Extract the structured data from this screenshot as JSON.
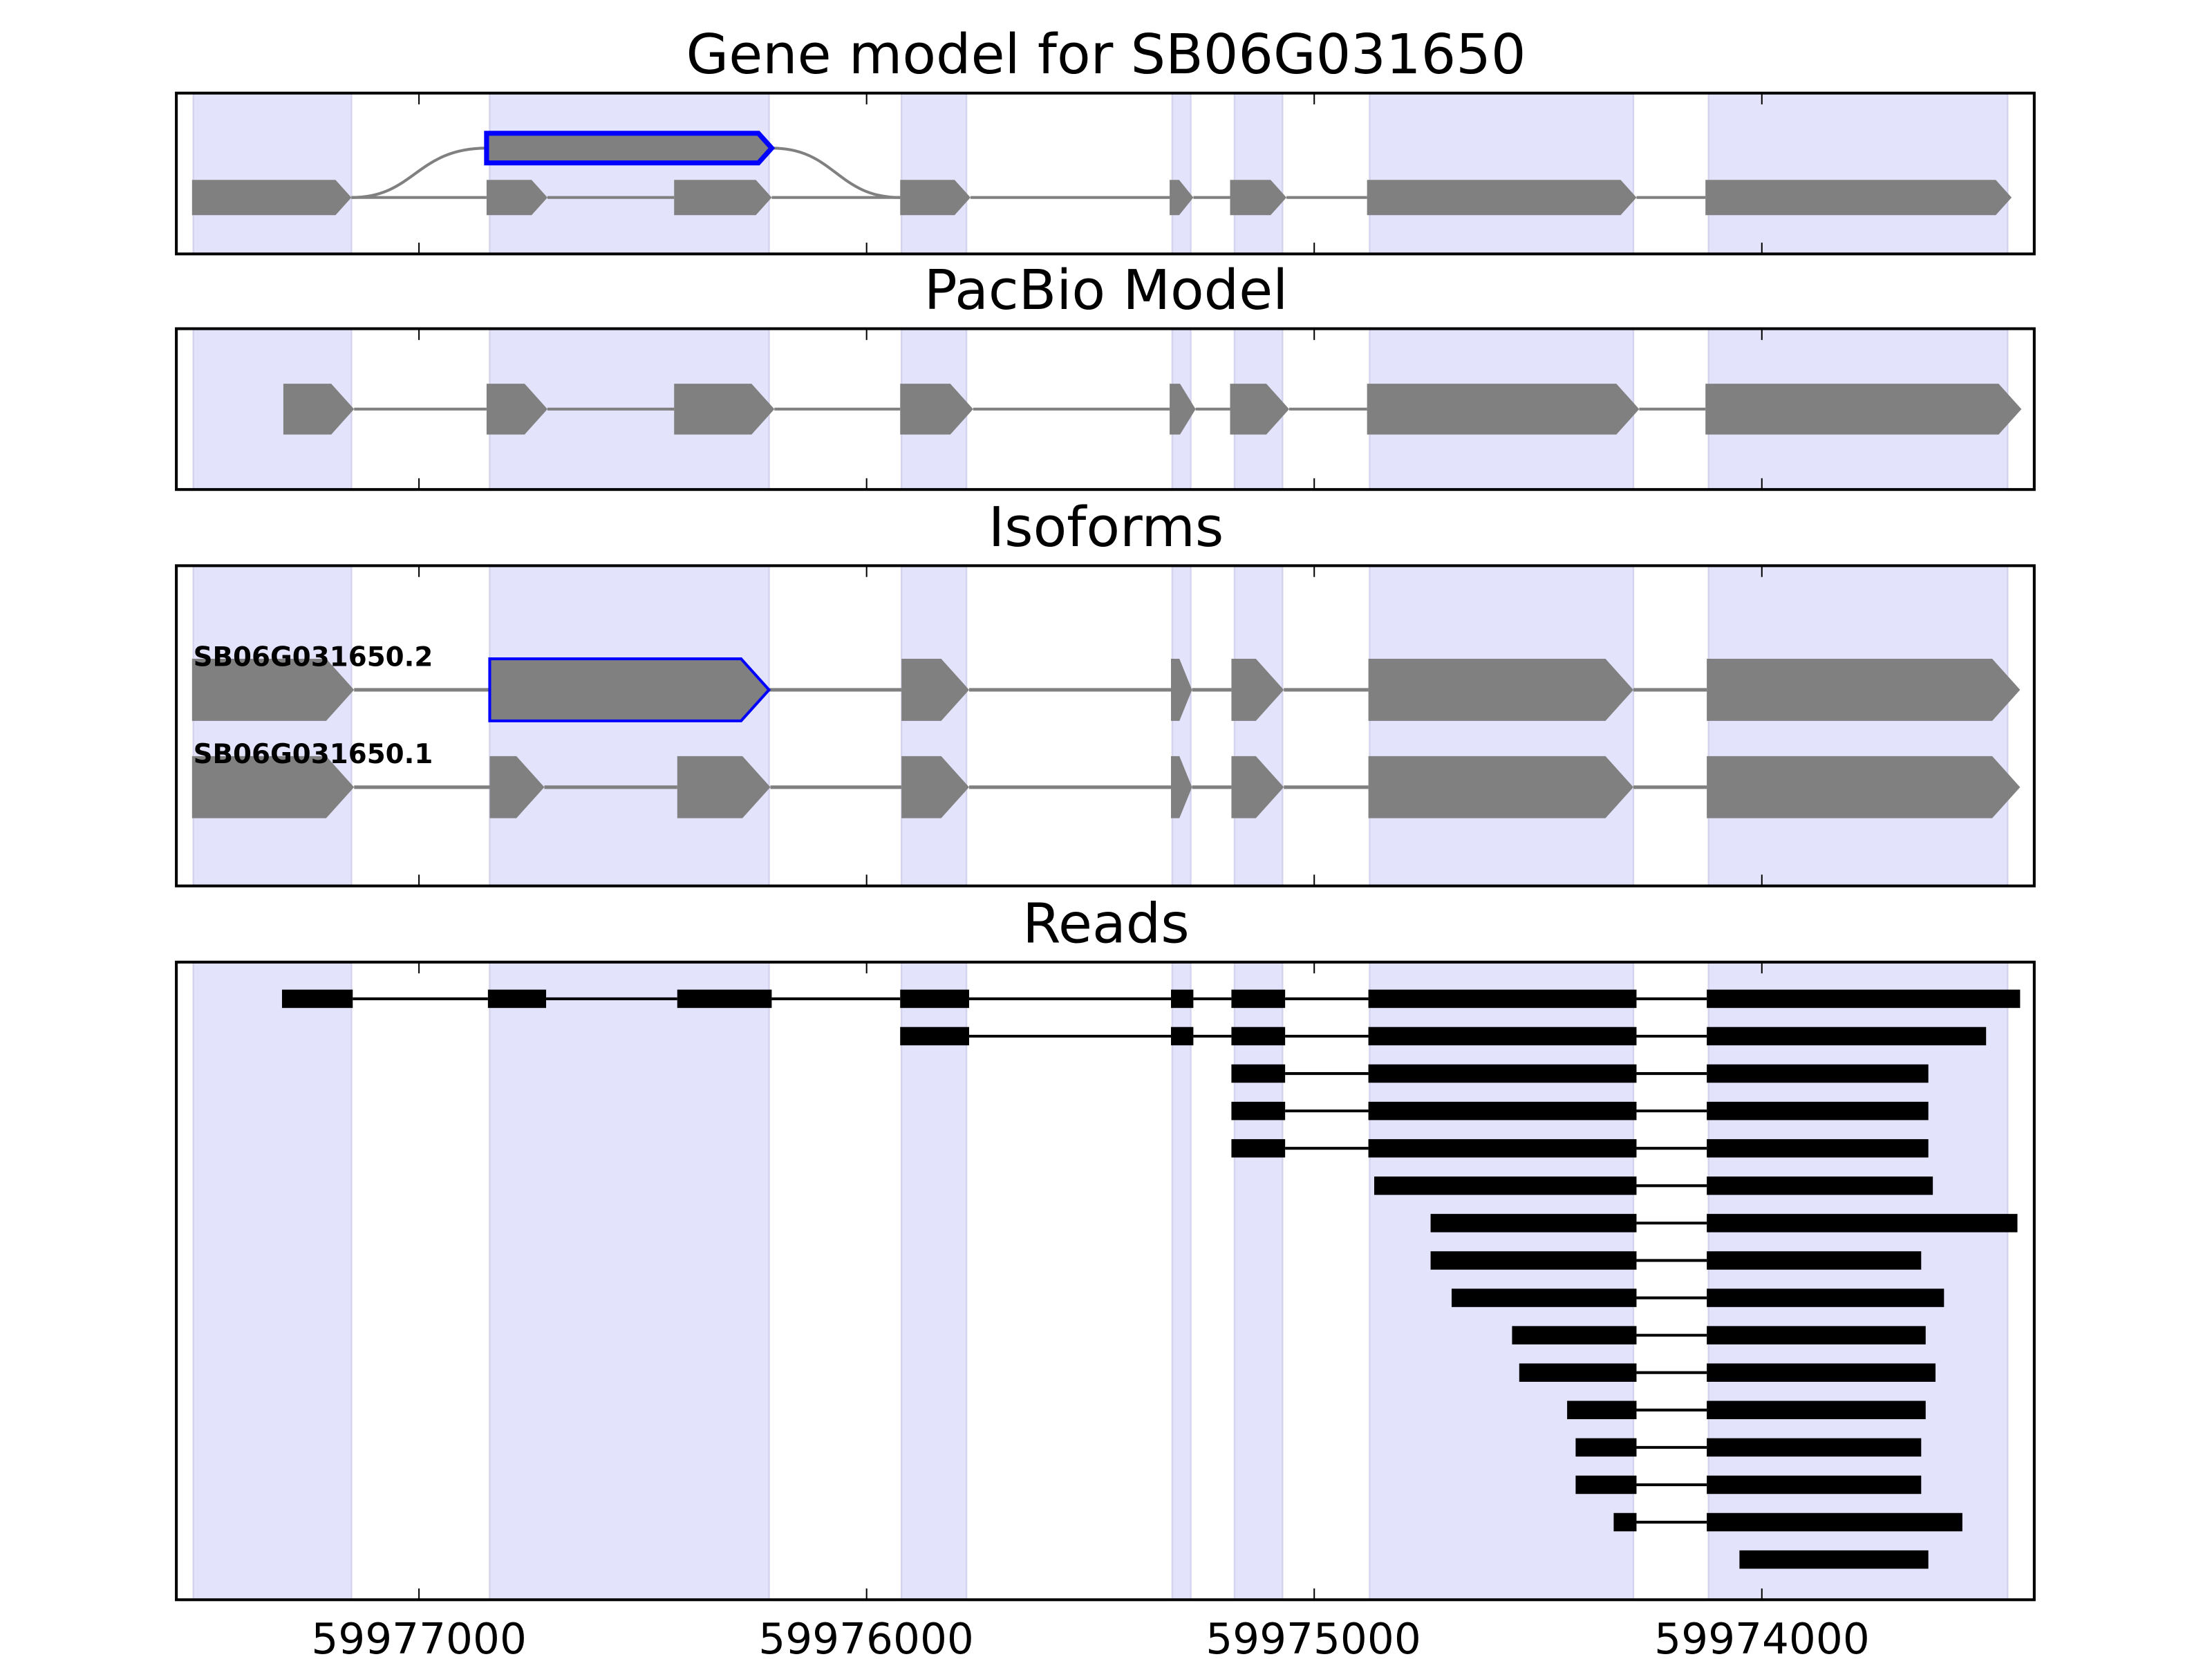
{
  "chart_data": {
    "type": "gene-track",
    "x_axis": {
      "reversed": true,
      "xlim": [
        59977540,
        59973390
      ],
      "ticks": [
        59977000,
        59976000,
        59975000,
        59974000
      ],
      "tick_labels": [
        "59977000",
        "59976000",
        "59975000",
        "59974000"
      ]
    },
    "colors": {
      "shade": "#e3e3fb",
      "exon": "#808080",
      "highlight": "#0000ff",
      "read": "#000000"
    },
    "shaded_regions": [
      [
        59977504,
        59977151
      ],
      [
        59976842,
        59976218
      ],
      [
        59975922,
        59975777
      ],
      [
        59975317,
        59975276
      ],
      [
        59975178,
        59975071
      ],
      [
        59974876,
        59974287
      ],
      [
        59974119,
        59973451
      ]
    ],
    "panels": [
      {
        "title": "Gene model for SB06G031650",
        "gene_model": {
          "exons": [
            [
              59977507,
              59977151
            ],
            [
              59976849,
              59976713
            ],
            [
              59976430,
              59976212
            ],
            [
              59975925,
              59975768
            ],
            [
              59975323,
              59975270
            ],
            [
              59975188,
              59975062
            ],
            [
              59974882,
              59974280
            ],
            [
              59974126,
              59973442
            ]
          ],
          "highlighted_exon": [
            59976849,
            59976212
          ]
        }
      },
      {
        "title": "PacBio Model",
        "pacbio_model": {
          "exons": [
            [
              59977303,
              59977145
            ],
            [
              59976849,
              59976713
            ],
            [
              59976430,
              59976206
            ],
            [
              59975925,
              59975762
            ],
            [
              59975323,
              59975265
            ],
            [
              59975188,
              59975056
            ],
            [
              59974882,
              59974274
            ],
            [
              59974126,
              59973420
            ]
          ]
        }
      },
      {
        "title": "Isoforms",
        "isoforms": [
          {
            "name": "SB06G031650.2",
            "exons": [
              [
                59977507,
                59977145
              ],
              [
                59976842,
                59976218
              ],
              [
                59975922,
                59975771
              ],
              [
                59975320,
                59975273
              ],
              [
                59975185,
                59975068
              ],
              [
                59974879,
                59974287
              ],
              [
                59974123,
                59973423
              ]
            ],
            "highlighted_exon": [
              59976842,
              59976218
            ]
          },
          {
            "name": "SB06G031650.1",
            "exons": [
              [
                59977507,
                59977145
              ],
              [
                59976842,
                59976720
              ],
              [
                59976423,
                59976215
              ],
              [
                59975922,
                59975771
              ],
              [
                59975320,
                59975273
              ],
              [
                59975185,
                59975068
              ],
              [
                59974879,
                59974287
              ],
              [
                59974123,
                59973423
              ]
            ]
          }
        ]
      },
      {
        "title": "Reads",
        "reads": [
          [
            [
              59977306,
              59977148
            ],
            [
              59976846,
              59976716
            ],
            [
              59976423,
              59976212
            ],
            [
              59975925,
              59975771
            ],
            [
              59975320,
              59975270
            ],
            [
              59975185,
              59975065
            ],
            [
              59974879,
              59974280
            ],
            [
              59974123,
              59973423
            ]
          ],
          [
            [
              59975925,
              59975771
            ],
            [
              59975320,
              59975270
            ],
            [
              59975185,
              59975065
            ],
            [
              59974879,
              59974280
            ],
            [
              59974123,
              59973499
            ]
          ],
          [
            [
              59975185,
              59975065
            ],
            [
              59974879,
              59974280
            ],
            [
              59974123,
              59973628
            ]
          ],
          [
            [
              59975185,
              59975065
            ],
            [
              59974879,
              59974280
            ],
            [
              59974123,
              59973628
            ]
          ],
          [
            [
              59975185,
              59975065
            ],
            [
              59974879,
              59974280
            ],
            [
              59974123,
              59973628
            ]
          ],
          [
            [
              59974866,
              59974280
            ],
            [
              59974123,
              59973618
            ]
          ],
          [
            [
              59974740,
              59974280
            ],
            [
              59974123,
              59973429
            ]
          ],
          [
            [
              59974740,
              59974280
            ],
            [
              59974123,
              59973644
            ]
          ],
          [
            [
              59974693,
              59974280
            ],
            [
              59974123,
              59973593
            ]
          ],
          [
            [
              59974558,
              59974280
            ],
            [
              59974123,
              59973634
            ]
          ],
          [
            [
              59974542,
              59974280
            ],
            [
              59974123,
              59973612
            ]
          ],
          [
            [
              59974435,
              59974280
            ],
            [
              59974123,
              59973634
            ]
          ],
          [
            [
              59974416,
              59974280
            ],
            [
              59974123,
              59973644
            ]
          ],
          [
            [
              59974416,
              59974280
            ],
            [
              59974123,
              59973644
            ]
          ],
          [
            [
              59974331,
              59974280
            ],
            [
              59974123,
              59973552
            ]
          ],
          [
            [
              59974050,
              59973628
            ]
          ]
        ]
      }
    ]
  }
}
